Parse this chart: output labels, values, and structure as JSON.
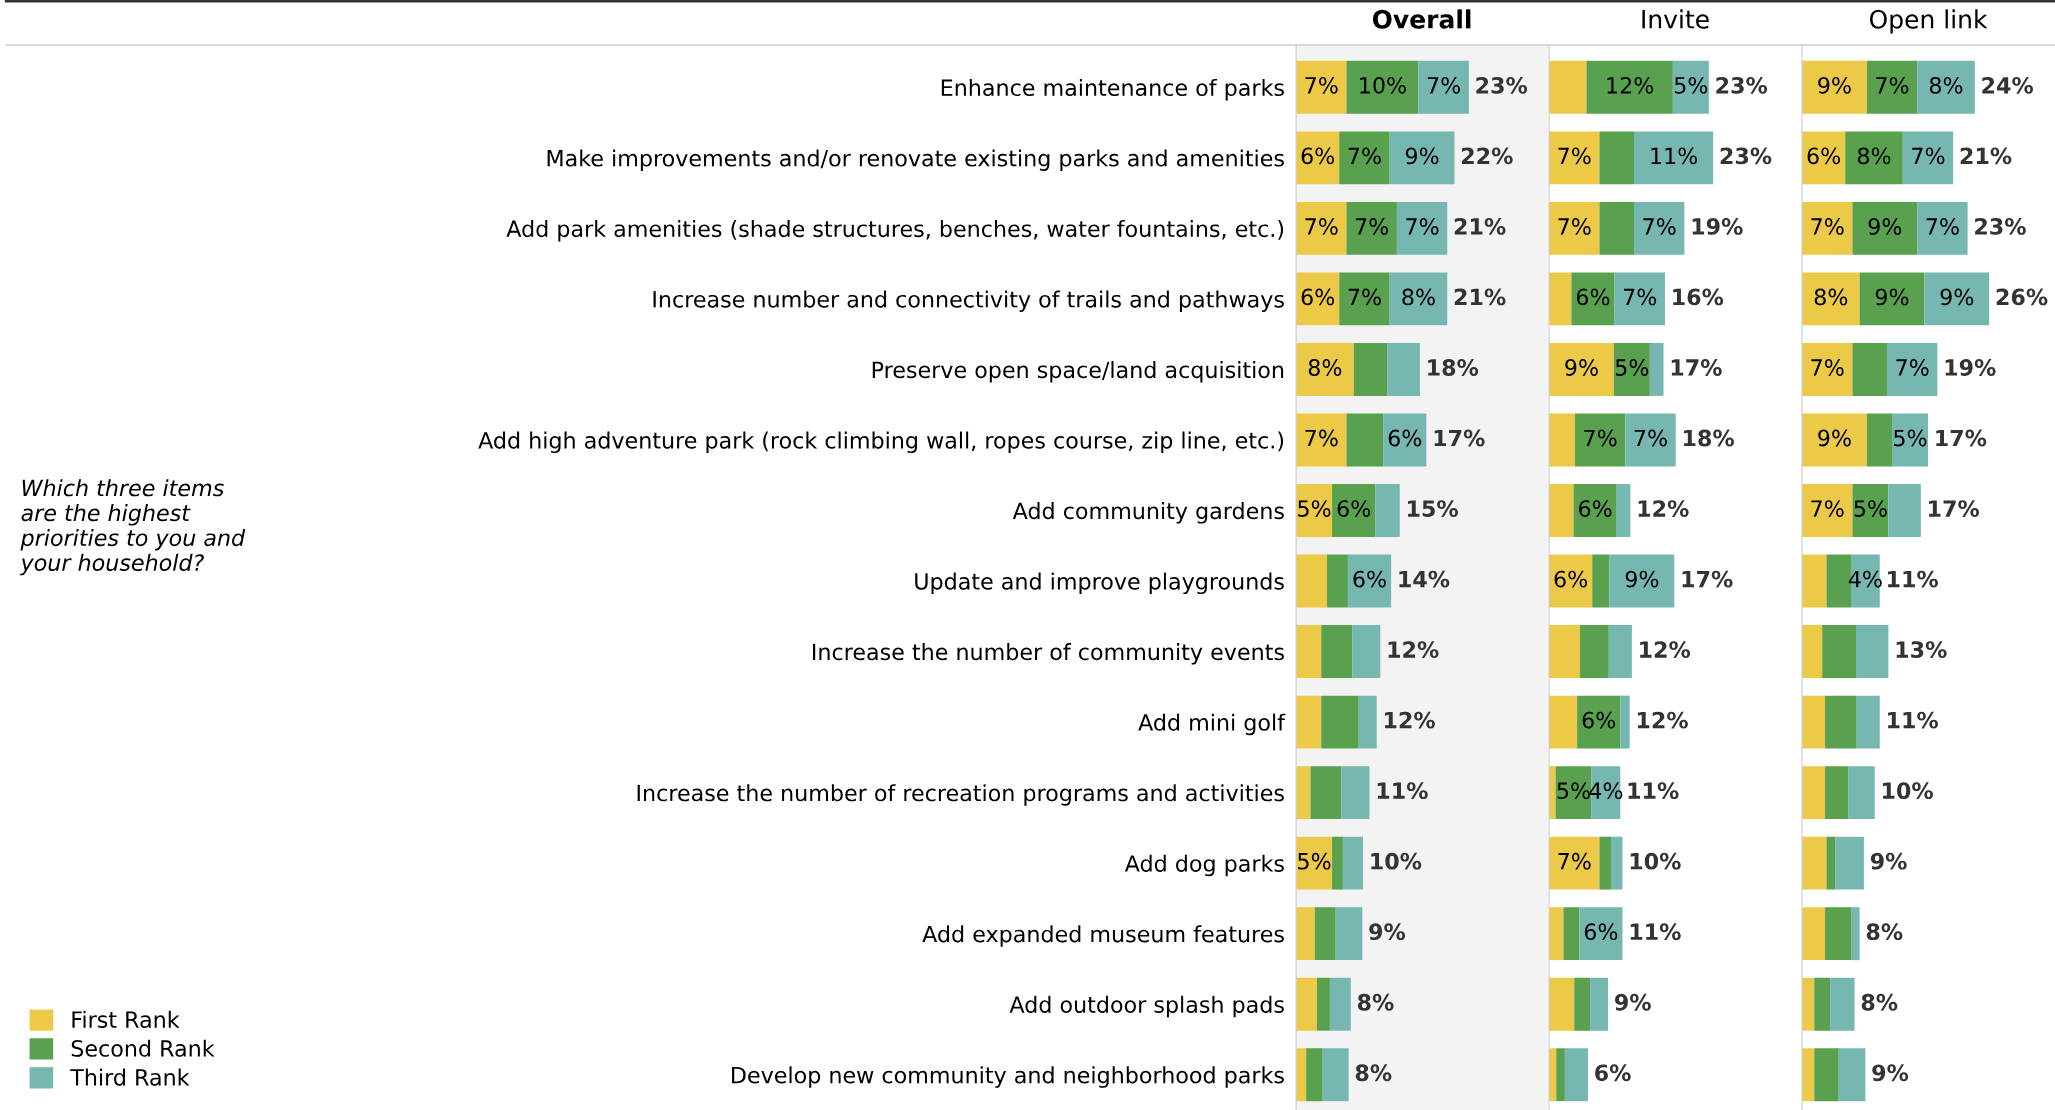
{
  "chart_data": [
    {
      "type": "bar",
      "orientation": "horizontal",
      "stacked": true,
      "title": "Overall",
      "xlim": [
        0,
        35
      ],
      "tick_labels": "y",
      "legend": "bottom left",
      "annotations": [
        "Which three items\nare the highest\npriorities to you and\nyour household?"
      ],
      "categories": [
        "Enhance maintenance of parks",
        "Make improvements and/or renovate existing parks and amenities",
        "Add park amenities (shade structures, benches, water fountains, etc.)",
        "Increase number and connectivity of trails and pathways",
        "Preserve open space/land acquisition",
        "Add high adventure park (rock climbing wall, ropes course, zip line, etc.)",
        "Add community gardens",
        "Update and improve playgrounds",
        "Increase the number of community events",
        "Add mini golf",
        "Increase the number of recreation programs and activities",
        "Add dog parks",
        "Add expanded museum features",
        "Add outdoor splash pads",
        "Develop new community and neighborhood parks"
      ],
      "series": [
        {
          "name": "First Rank",
          "color": "#edc948",
          "values": [
            7,
            6,
            7,
            6,
            8,
            7,
            5,
            4.3,
            3.5,
            3.5,
            2.0,
            5,
            2.6,
            2.9,
            1.4
          ],
          "value_labels": [
            "7%",
            "6%",
            "7%",
            "6%",
            "8%",
            "7%",
            "5%",
            null,
            null,
            null,
            null,
            "5%",
            null,
            null,
            null
          ]
        },
        {
          "name": "Second Rank",
          "color": "#59a14f",
          "values": [
            10,
            7,
            7,
            7,
            4.7,
            5.1,
            6,
            2.9,
            4.3,
            5.2,
            4.3,
            1.5,
            2.9,
            1.8,
            2.3
          ],
          "value_labels": [
            "10%",
            "7%",
            "7%",
            "7%",
            null,
            null,
            "6%",
            null,
            null,
            null,
            null,
            null,
            null,
            null,
            null
          ]
        },
        {
          "name": "Third Rank",
          "color": "#76b7b2",
          "values": [
            7,
            9,
            7,
            8,
            4.5,
            6,
            3.4,
            6,
            3.9,
            2.5,
            3.9,
            2.8,
            3.7,
            2.9,
            3.6
          ],
          "value_labels": [
            "7%",
            "9%",
            "7%",
            "8%",
            null,
            "6%",
            null,
            "6%",
            null,
            null,
            null,
            null,
            null,
            null,
            null
          ]
        }
      ],
      "totals": [
        "23%",
        "22%",
        "21%",
        "21%",
        "18%",
        "17%",
        "15%",
        "14%",
        "12%",
        "12%",
        "11%",
        "10%",
        "9%",
        "8%",
        "8%"
      ]
    },
    {
      "type": "bar",
      "orientation": "horizontal",
      "stacked": true,
      "title": "Invite",
      "xlim": [
        0,
        35
      ],
      "tick_labels": false,
      "categories": [
        null,
        null,
        null,
        null,
        null,
        null,
        null,
        null,
        null,
        null,
        null,
        null,
        null,
        null,
        null
      ],
      "series": [
        {
          "color": "#edc948",
          "values": [
            5.2,
            7,
            7,
            3.1,
            9,
            3.6,
            3.4,
            6,
            4.3,
            3.9,
            0.9,
            7,
            2.0,
            3.5,
            1.0
          ],
          "value_labels": [
            null,
            "7%",
            "7%",
            null,
            "9%",
            null,
            null,
            "6%",
            null,
            null,
            null,
            "7%",
            null,
            null,
            null
          ]
        },
        {
          "color": "#59a14f",
          "values": [
            12,
            4.8,
            4.8,
            6,
            5,
            7,
            6,
            2.4,
            4.0,
            6,
            5,
            1.6,
            2.2,
            2.2,
            1.2
          ],
          "value_labels": [
            "12%",
            null,
            null,
            "6%",
            "5%",
            "7%",
            "6%",
            null,
            null,
            "6%",
            "5%",
            null,
            null,
            null,
            null
          ]
        },
        {
          "color": "#76b7b2",
          "values": [
            5,
            11,
            7,
            7,
            1.9,
            7,
            1.9,
            9,
            3.2,
            1.3,
            4,
            1.6,
            6,
            2.5,
            3.2
          ],
          "value_labels": [
            "5%",
            "11%",
            "7%",
            "7%",
            null,
            "7%",
            null,
            "9%",
            null,
            null,
            "4%",
            null,
            "6%",
            null,
            null
          ]
        }
      ],
      "totals": [
        "23%",
        "23%",
        "19%",
        "16%",
        "17%",
        "18%",
        "12%",
        "17%",
        "12%",
        "12%",
        "11%",
        "10%",
        "11%",
        "9%",
        "6%"
      ]
    },
    {
      "type": "bar",
      "orientation": "horizontal",
      "stacked": true,
      "title": "Open link",
      "xlim": [
        0,
        35
      ],
      "tick_labels": false,
      "categories": [
        null,
        null,
        null,
        null,
        null,
        null,
        null,
        null,
        null,
        null,
        null,
        null,
        null,
        null,
        null
      ],
      "series": [
        {
          "color": "#edc948",
          "values": [
            9,
            6,
            7,
            8,
            7,
            9,
            7,
            3.4,
            2.8,
            3.2,
            3.2,
            3.4,
            3.2,
            1.7,
            1.7
          ],
          "value_labels": [
            "9%",
            "6%",
            "7%",
            "8%",
            "7%",
            "9%",
            "7%",
            null,
            null,
            null,
            null,
            null,
            null,
            null,
            null
          ]
        },
        {
          "color": "#59a14f",
          "values": [
            7,
            8,
            9,
            9,
            4.8,
            3.5,
            5,
            3.4,
            4.7,
            4.4,
            3.2,
            1.2,
            3.7,
            2.2,
            3.4
          ],
          "value_labels": [
            "7%",
            "8%",
            "9%",
            "9%",
            null,
            null,
            "5%",
            null,
            null,
            null,
            null,
            null,
            null,
            null,
            null
          ]
        },
        {
          "color": "#76b7b2",
          "values": [
            8,
            7,
            7,
            9,
            7,
            5,
            4.5,
            4,
            4.5,
            3.2,
            3.7,
            4.0,
            1.1,
            3.4,
            3.7
          ],
          "value_labels": [
            "8%",
            "7%",
            "7%",
            "9%",
            "7%",
            "5%",
            null,
            "4%",
            null,
            null,
            null,
            null,
            null,
            null,
            null
          ]
        }
      ],
      "totals": [
        "24%",
        "21%",
        "23%",
        "26%",
        "19%",
        "17%",
        "17%",
        "11%",
        "13%",
        "11%",
        "10%",
        "9%",
        "8%",
        "8%",
        "9%"
      ]
    }
  ]
}
